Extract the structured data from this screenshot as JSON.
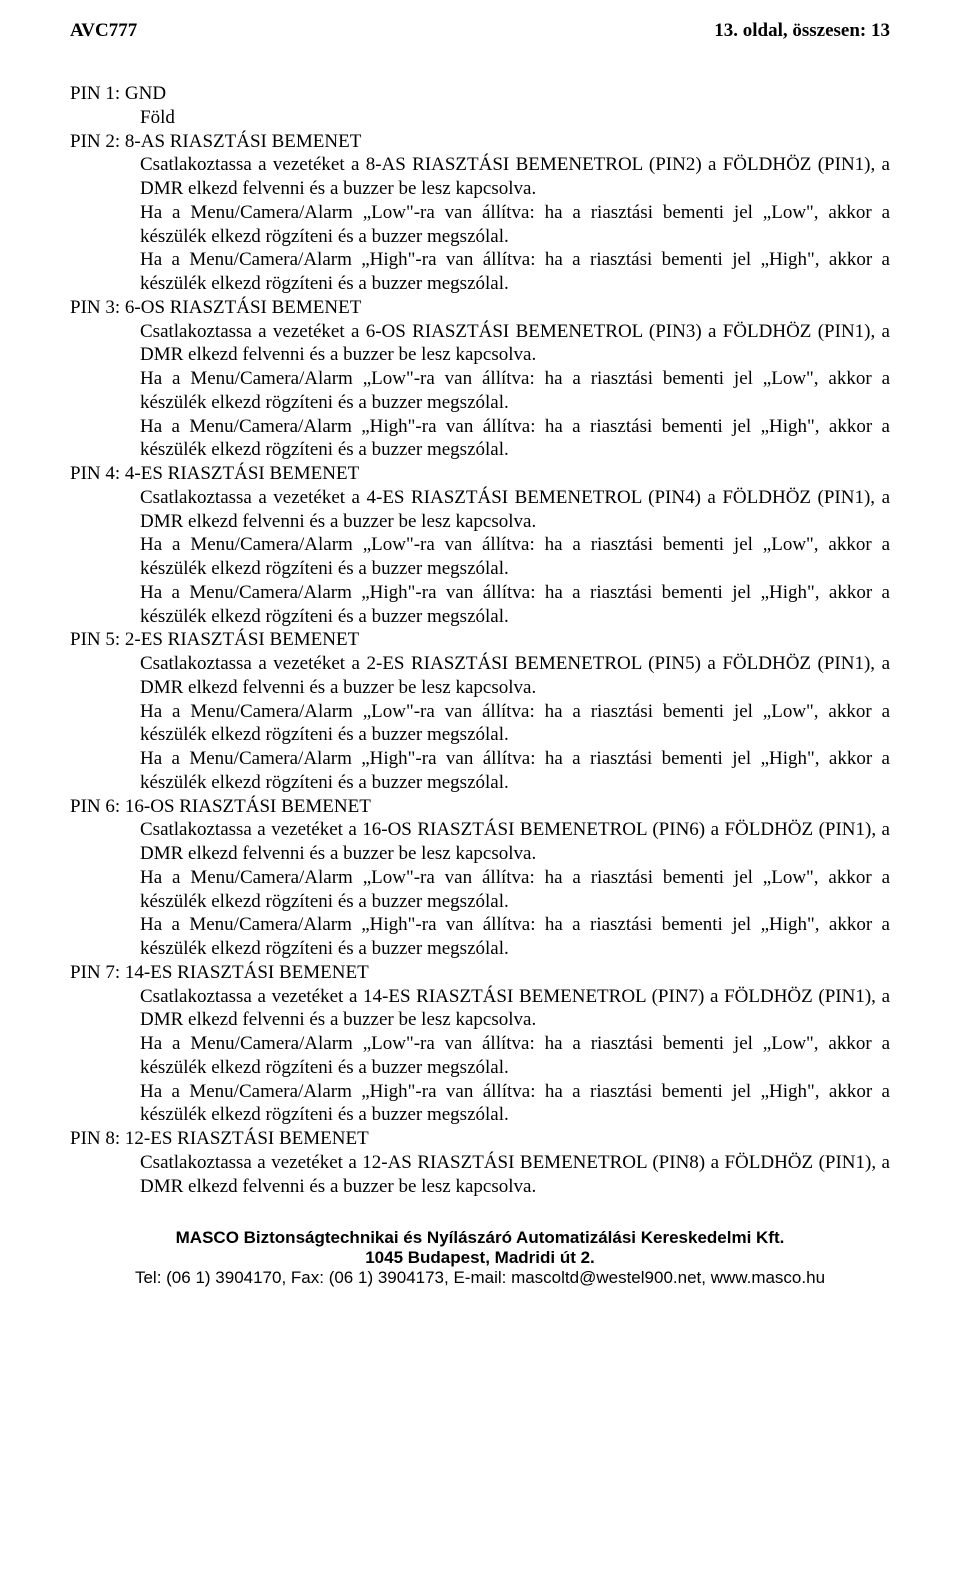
{
  "header": {
    "left": "AVC777",
    "right": "13. oldal, összesen: 13"
  },
  "pin1": {
    "heading": "PIN 1: GND",
    "line1": "Föld"
  },
  "pin2": {
    "heading": "PIN 2: 8-AS RIASZTÁSI BEMENET",
    "p1": "Csatlakoztassa a vezetéket a 8-AS RIASZTÁSI BEMENETROL (PIN2) a FÖLDHÖZ (PIN1), a DMR elkezd felvenni és a buzzer be lesz kapcsolva.",
    "p2": "Ha a Menu/Camera/Alarm „Low\"-ra van állítva: ha a riasztási bementi jel „Low\", akkor a készülék elkezd rögzíteni és a buzzer megszólal.",
    "p3": "Ha a Menu/Camera/Alarm „High\"-ra van állítva: ha a riasztási bementi jel „High\", akkor a készülék elkezd rögzíteni és a buzzer megszólal."
  },
  "pin3": {
    "heading": "PIN 3: 6-OS RIASZTÁSI BEMENET",
    "p1": "Csatlakoztassa a vezetéket a 6-OS RIASZTÁSI BEMENETROL (PIN3) a FÖLDHÖZ (PIN1), a DMR elkezd felvenni és a buzzer be lesz kapcsolva.",
    "p2": "Ha a Menu/Camera/Alarm „Low\"-ra van állítva: ha a riasztási bementi jel „Low\", akkor a készülék elkezd rögzíteni és a buzzer megszólal.",
    "p3": "Ha a Menu/Camera/Alarm „High\"-ra van állítva: ha a riasztási bementi jel „High\", akkor a készülék elkezd rögzíteni és a buzzer megszólal."
  },
  "pin4": {
    "heading": "PIN 4: 4-ES RIASZTÁSI BEMENET",
    "p1": "Csatlakoztassa a vezetéket a 4-ES RIASZTÁSI BEMENETROL (PIN4) a FÖLDHÖZ (PIN1), a DMR elkezd felvenni és a buzzer be lesz kapcsolva.",
    "p2": "Ha a Menu/Camera/Alarm „Low\"-ra van állítva: ha a riasztási bementi jel „Low\", akkor a készülék elkezd rögzíteni és a buzzer megszólal.",
    "p3": "Ha a Menu/Camera/Alarm „High\"-ra van állítva: ha a riasztási bementi jel „High\", akkor a készülék elkezd rögzíteni és a buzzer megszólal."
  },
  "pin5": {
    "heading": "PIN 5: 2-ES RIASZTÁSI BEMENET",
    "p1": "Csatlakoztassa a vezetéket a 2-ES RIASZTÁSI BEMENETROL (PIN5) a FÖLDHÖZ (PIN1), a DMR elkezd felvenni és a buzzer be lesz kapcsolva.",
    "p2": "Ha a Menu/Camera/Alarm „Low\"-ra van állítva: ha a riasztási bementi jel „Low\", akkor a készülék elkezd rögzíteni és a buzzer megszólal.",
    "p3": "Ha a Menu/Camera/Alarm „High\"-ra van állítva: ha a riasztási bementi jel „High\", akkor a készülék elkezd rögzíteni és a buzzer megszólal."
  },
  "pin6": {
    "heading": "PIN 6: 16-OS RIASZTÁSI BEMENET",
    "p1": "Csatlakoztassa a vezetéket a 16-OS RIASZTÁSI BEMENETROL (PIN6) a FÖLDHÖZ (PIN1), a DMR elkezd felvenni és a buzzer be lesz kapcsolva.",
    "p2": "Ha a Menu/Camera/Alarm „Low\"-ra van állítva: ha a riasztási bementi jel „Low\", akkor a készülék elkezd rögzíteni és a buzzer megszólal.",
    "p3": "Ha a Menu/Camera/Alarm „High\"-ra van állítva: ha a riasztási bementi jel „High\", akkor a készülék elkezd rögzíteni és a buzzer megszólal."
  },
  "pin7": {
    "heading": "PIN 7: 14-ES RIASZTÁSI BEMENET",
    "p1": "Csatlakoztassa a vezetéket a 14-ES RIASZTÁSI BEMENETROL (PIN7) a FÖLDHÖZ (PIN1), a DMR elkezd felvenni és a buzzer be lesz kapcsolva.",
    "p2": "Ha a Menu/Camera/Alarm „Low\"-ra van állítva: ha a riasztási bementi jel „Low\", akkor a készülék elkezd rögzíteni és a buzzer megszólal.",
    "p3": "Ha a Menu/Camera/Alarm „High\"-ra van állítva: ha a riasztási bementi jel „High\", akkor a készülék elkezd rögzíteni és a buzzer megszólal."
  },
  "pin8": {
    "heading": "PIN 8: 12-ES RIASZTÁSI BEMENET",
    "p1": "Csatlakoztassa a vezetéket a 12-AS RIASZTÁSI BEMENETROL (PIN8) a FÖLDHÖZ (PIN1), a DMR elkezd felvenni és a buzzer be lesz kapcsolva."
  },
  "footer": {
    "line1": "MASCO Biztonságtechnikai és Nyílászáró Automatizálási Kereskedelmi Kft.",
    "line2": "1045 Budapest, Madridi út 2.",
    "line3": "Tel: (06 1) 3904170, Fax: (06 1) 3904173, E-mail: mascoltd@westel900.net, www.masco.hu"
  }
}
